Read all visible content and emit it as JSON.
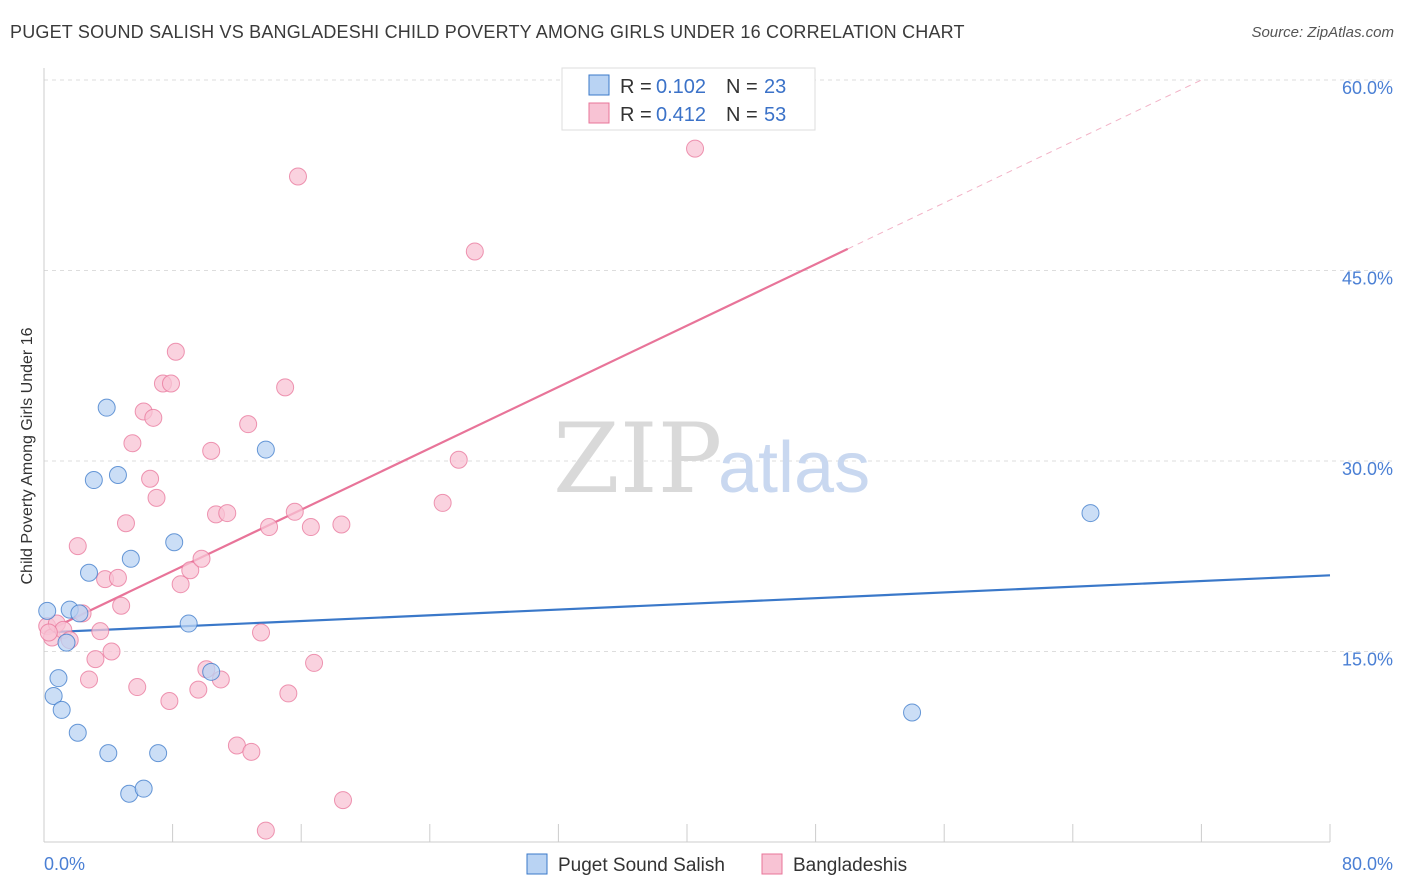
{
  "title": "PUGET SOUND SALISH VS BANGLADESHI CHILD POVERTY AMONG GIRLS UNDER 16 CORRELATION CHART",
  "source": "Source: ZipAtlas.com",
  "colors": {
    "blue": "#3a78c9",
    "blue_fill": "#b9d3f3",
    "pink": "#e87499",
    "pink_fill": "#f8c3d4",
    "tick_text": "#4a7fd4",
    "grid": "#dddddd"
  },
  "legend": {
    "rows": [
      {
        "r_label": "R = ",
        "r_value": "0.102",
        "n_label": "N = ",
        "n_value": "23"
      },
      {
        "r_label": "R = ",
        "r_value": "0.412",
        "n_label": "N = ",
        "n_value": "53"
      }
    ]
  },
  "watermark": {
    "zip": "ZIP",
    "atlas": "atlas"
  },
  "chart_data": {
    "type": "scatter",
    "xlabel": "",
    "ylabel": "Child Poverty Among Girls Under 16",
    "xlim": [
      0,
      80
    ],
    "ylim": [
      0,
      60
    ],
    "x_tick_labels": {
      "min": "0.0%",
      "max": "80.0%"
    },
    "y_tick_labels": [
      {
        "value": 15,
        "label": "15.0%"
      },
      {
        "value": 30,
        "label": "30.0%"
      },
      {
        "value": 45,
        "label": "45.0%"
      },
      {
        "value": 60,
        "label": "60.0%"
      }
    ],
    "series": [
      {
        "name": "Puget Sound Salish",
        "color": "#3a78c9",
        "fill": "#b9d3f3",
        "points": [
          [
            0.2,
            18.2
          ],
          [
            0.6,
            11.5
          ],
          [
            0.9,
            12.9
          ],
          [
            1.1,
            10.4
          ],
          [
            1.4,
            15.7
          ],
          [
            1.6,
            18.3
          ],
          [
            2.1,
            8.6
          ],
          [
            2.2,
            18.0
          ],
          [
            2.8,
            21.2
          ],
          [
            3.1,
            28.5
          ],
          [
            3.9,
            34.2
          ],
          [
            4.0,
            7.0
          ],
          [
            4.6,
            28.9
          ],
          [
            5.3,
            3.8
          ],
          [
            5.4,
            22.3
          ],
          [
            6.2,
            4.2
          ],
          [
            7.1,
            7.0
          ],
          [
            8.1,
            23.6
          ],
          [
            9.0,
            17.2
          ],
          [
            10.4,
            13.4
          ],
          [
            13.8,
            30.9
          ],
          [
            54.0,
            10.2
          ],
          [
            65.1,
            25.9
          ]
        ],
        "trend": {
          "x0": 0,
          "y0": 16.5,
          "x1": 80,
          "y1": 21.0
        }
      },
      {
        "name": "Bangladeshis",
        "color": "#e87499",
        "fill": "#f8c3d4",
        "points": [
          [
            0.2,
            17.0
          ],
          [
            0.5,
            16.1
          ],
          [
            0.8,
            17.2
          ],
          [
            1.2,
            16.7
          ],
          [
            1.6,
            15.9
          ],
          [
            2.1,
            23.3
          ],
          [
            2.4,
            18.0
          ],
          [
            2.8,
            12.8
          ],
          [
            3.2,
            14.4
          ],
          [
            3.5,
            16.6
          ],
          [
            3.8,
            20.7
          ],
          [
            4.2,
            15.0
          ],
          [
            4.6,
            20.8
          ],
          [
            4.8,
            18.6
          ],
          [
            5.1,
            25.1
          ],
          [
            5.5,
            31.4
          ],
          [
            5.8,
            12.2
          ],
          [
            6.2,
            33.9
          ],
          [
            6.6,
            28.6
          ],
          [
            6.8,
            33.4
          ],
          [
            7.0,
            27.1
          ],
          [
            7.4,
            36.1
          ],
          [
            7.8,
            11.1
          ],
          [
            7.9,
            36.1
          ],
          [
            8.2,
            38.6
          ],
          [
            8.5,
            20.3
          ],
          [
            9.1,
            21.4
          ],
          [
            9.6,
            12.0
          ],
          [
            9.8,
            22.3
          ],
          [
            10.1,
            13.6
          ],
          [
            10.4,
            30.8
          ],
          [
            10.7,
            25.8
          ],
          [
            11.0,
            12.8
          ],
          [
            11.4,
            25.9
          ],
          [
            12.0,
            7.6
          ],
          [
            12.7,
            32.9
          ],
          [
            12.9,
            7.1
          ],
          [
            13.5,
            16.5
          ],
          [
            13.8,
            0.9
          ],
          [
            14.0,
            24.8
          ],
          [
            15.0,
            35.8
          ],
          [
            15.2,
            11.7
          ],
          [
            15.6,
            26.0
          ],
          [
            15.8,
            52.4
          ],
          [
            16.6,
            24.8
          ],
          [
            16.8,
            14.1
          ],
          [
            18.5,
            25.0
          ],
          [
            18.6,
            3.3
          ],
          [
            24.8,
            26.7
          ],
          [
            25.8,
            30.1
          ],
          [
            26.8,
            46.5
          ],
          [
            40.5,
            54.6
          ],
          [
            0.3,
            16.5
          ]
        ],
        "trend": {
          "x0": 0,
          "y0": 16.5,
          "x1": 50,
          "y1": 46.7
        },
        "trend_extension": {
          "x0": 50,
          "y0": 46.7,
          "x1": 72,
          "y1": 60
        }
      }
    ],
    "grid": true,
    "legend_position": "top-center"
  }
}
